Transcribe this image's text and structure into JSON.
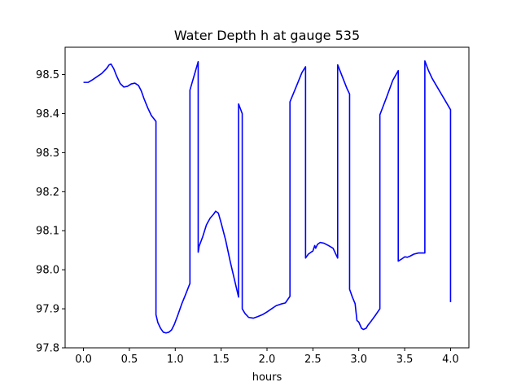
{
  "chart_data": {
    "type": "line",
    "title": "Water Depth h at gauge 535",
    "xlabel": "hours",
    "ylabel": "",
    "xlim": [
      -0.2,
      4.2
    ],
    "ylim": [
      97.8,
      98.57
    ],
    "xticks": [
      0.0,
      0.5,
      1.0,
      1.5,
      2.0,
      2.5,
      3.0,
      3.5,
      4.0
    ],
    "xtick_labels": [
      "0.0",
      "0.5",
      "1.0",
      "1.5",
      "2.0",
      "2.5",
      "3.0",
      "3.5",
      "4.0"
    ],
    "yticks": [
      97.8,
      97.9,
      98.0,
      98.1,
      98.2,
      98.3,
      98.4,
      98.5
    ],
    "ytick_labels": [
      "97.8",
      "97.9",
      "98.0",
      "98.1",
      "98.2",
      "98.3",
      "98.4",
      "98.5"
    ],
    "grid": false,
    "series": [
      {
        "color": "#0000ff",
        "x": [
          0.0,
          0.05,
          0.1,
          0.15,
          0.2,
          0.25,
          0.28,
          0.3,
          0.33,
          0.36,
          0.4,
          0.44,
          0.48,
          0.52,
          0.56,
          0.6,
          0.63,
          0.66,
          0.7,
          0.74,
          0.79,
          0.79,
          0.81,
          0.84,
          0.87,
          0.9,
          0.93,
          0.96,
          0.99,
          1.03,
          1.07,
          1.11,
          1.16,
          1.16,
          1.25,
          1.25,
          1.26,
          1.3,
          1.34,
          1.38,
          1.42,
          1.44,
          1.47,
          1.5,
          1.55,
          1.6,
          1.65,
          1.69,
          1.69,
          1.73,
          1.73,
          1.76,
          1.8,
          1.85,
          1.9,
          1.95,
          2.0,
          2.05,
          2.1,
          2.15,
          2.2,
          2.25,
          2.25,
          2.32,
          2.38,
          2.42,
          2.42,
          2.45,
          2.48,
          2.5,
          2.52,
          2.53,
          2.55,
          2.58,
          2.62,
          2.67,
          2.72,
          2.77,
          2.77,
          2.82,
          2.87,
          2.9,
          2.9,
          2.93,
          2.96,
          2.98,
          3.0,
          3.03,
          3.05,
          3.08,
          3.1,
          3.14,
          3.18,
          3.23,
          3.23,
          3.3,
          3.37,
          3.43,
          3.43,
          3.47,
          3.5,
          3.53,
          3.56,
          3.6,
          3.65,
          3.72,
          3.72,
          3.76,
          3.8,
          3.85,
          3.9,
          3.95,
          4.0,
          4.0
        ],
        "y": [
          98.48,
          98.48,
          98.487,
          98.495,
          98.503,
          98.515,
          98.525,
          98.527,
          98.515,
          98.497,
          98.477,
          98.468,
          98.47,
          98.476,
          98.478,
          98.472,
          98.458,
          98.438,
          98.415,
          98.395,
          98.38,
          97.885,
          97.865,
          97.85,
          97.84,
          97.838,
          97.84,
          97.846,
          97.86,
          97.885,
          97.912,
          97.935,
          97.965,
          98.46,
          98.533,
          98.045,
          98.06,
          98.085,
          98.115,
          98.132,
          98.143,
          98.15,
          98.145,
          98.12,
          98.075,
          98.02,
          97.97,
          97.93,
          98.425,
          98.4,
          97.9,
          97.888,
          97.878,
          97.876,
          97.88,
          97.885,
          97.892,
          97.9,
          97.908,
          97.912,
          97.915,
          97.932,
          98.43,
          98.47,
          98.505,
          98.52,
          98.03,
          98.04,
          98.045,
          98.048,
          98.062,
          98.055,
          98.065,
          98.07,
          98.068,
          98.062,
          98.055,
          98.03,
          98.525,
          98.495,
          98.465,
          98.45,
          97.95,
          97.93,
          97.913,
          97.87,
          97.866,
          97.85,
          97.847,
          97.85,
          97.858,
          97.87,
          97.883,
          97.9,
          98.397,
          98.44,
          98.485,
          98.51,
          98.022,
          98.028,
          98.033,
          98.032,
          98.035,
          98.04,
          98.043,
          98.043,
          98.535,
          98.51,
          98.49,
          98.47,
          98.45,
          98.43,
          98.41,
          97.917
        ]
      }
    ]
  }
}
